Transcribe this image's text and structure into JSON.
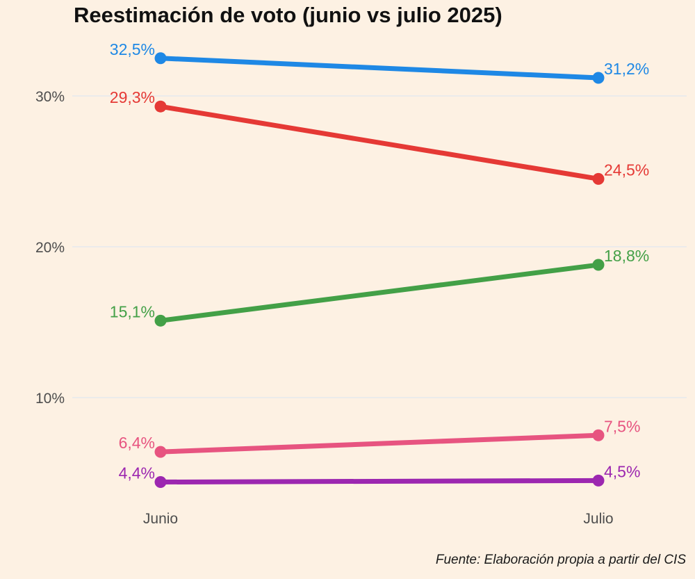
{
  "chart_data": {
    "type": "line",
    "title": "Reestimación de voto (junio vs julio 2025)",
    "caption": "Fuente: Elaboración propia a partir del CIS",
    "xlabel": "",
    "ylabel": "",
    "categories": [
      "Junio",
      "Julio"
    ],
    "ylim": [
      3.5,
      33.5
    ],
    "yticks": [
      10,
      20,
      30
    ],
    "ytick_labels": [
      "10%",
      "20%",
      "30%"
    ],
    "grid": true,
    "legend": "none",
    "series": [
      {
        "name": "serie-azul",
        "color": "#1e88e5",
        "values": [
          32.5,
          31.2
        ],
        "labels": [
          "32,5%",
          "31,2%"
        ]
      },
      {
        "name": "serie-roja",
        "color": "#e53935",
        "values": [
          29.3,
          24.5
        ],
        "labels": [
          "29,3%",
          "24,5%"
        ]
      },
      {
        "name": "serie-verde",
        "color": "#43a047",
        "values": [
          15.1,
          18.8
        ],
        "labels": [
          "15,1%",
          "18,8%"
        ]
      },
      {
        "name": "serie-rosa",
        "color": "#e75480",
        "values": [
          6.4,
          7.5
        ],
        "labels": [
          "6,4%",
          "7,5%"
        ]
      },
      {
        "name": "serie-morada",
        "color": "#9c27b0",
        "values": [
          4.4,
          4.5
        ],
        "labels": [
          "4,4%",
          "4,5%"
        ]
      }
    ]
  }
}
